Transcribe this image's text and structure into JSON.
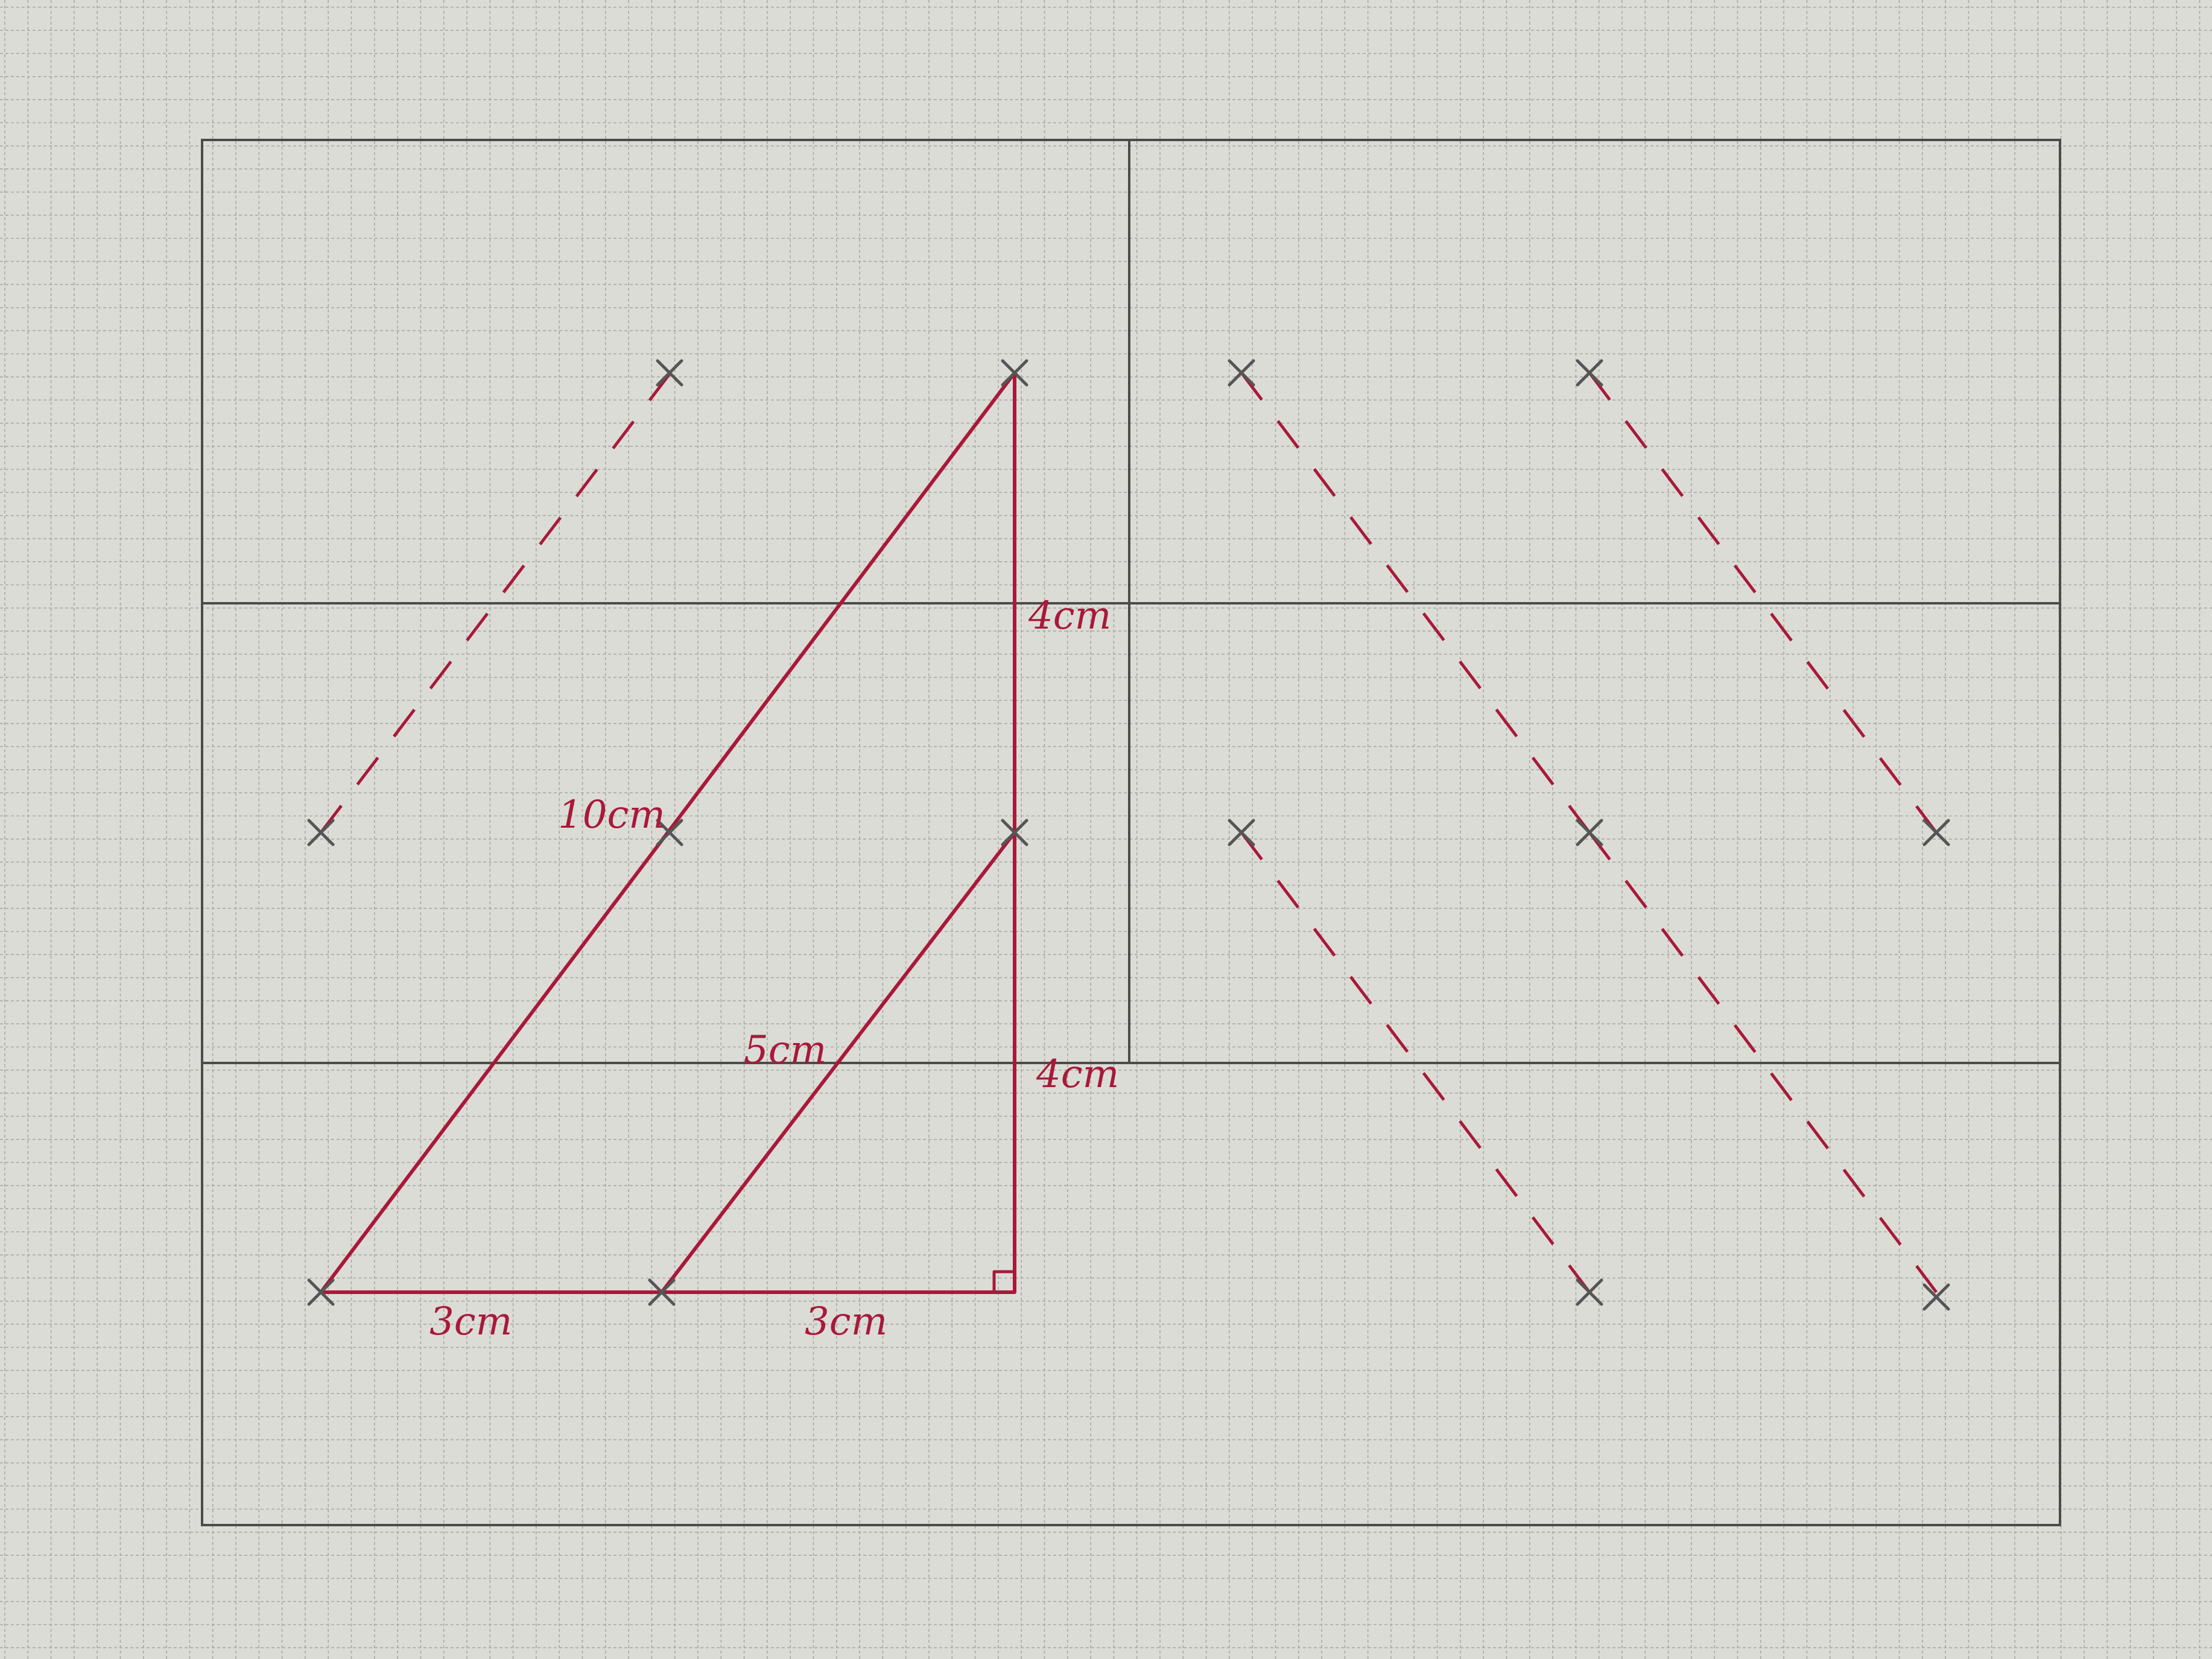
{
  "colors": {
    "paper": "#dcdcd6",
    "grid": "#a9aaa6",
    "pencil": "#4b4b4b",
    "ink": "#a8193a",
    "cross": "#555555"
  },
  "labels": {
    "hyp_big": "10cm",
    "hyp_small": "5cm",
    "vert_upper": "4cm",
    "vert_lower": "4cm",
    "base_left": "3cm",
    "base_right": "3cm"
  }
}
